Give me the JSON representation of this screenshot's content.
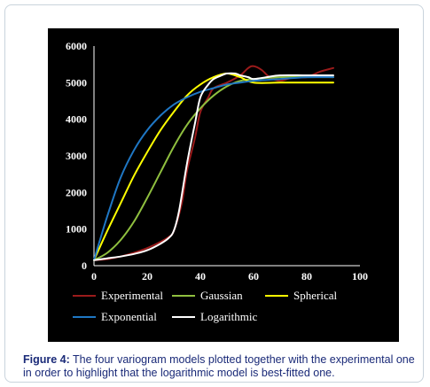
{
  "caption": {
    "label": "Figure 4:",
    "text": "The four variogram models plotted together with the experimental one in order to highlight that the logarithmic model is best-fitted one."
  },
  "chart_data": {
    "type": "line",
    "title": "",
    "xlabel": "",
    "ylabel": "",
    "xlim": [
      0,
      100
    ],
    "ylim": [
      0,
      6000
    ],
    "x_ticks": [
      "0",
      "20",
      "40",
      "60",
      "80",
      "100"
    ],
    "y_ticks": [
      "0",
      "1000",
      "2000",
      "3000",
      "4000",
      "5000",
      "6000"
    ],
    "grid": false,
    "legend_position": "bottom",
    "series": [
      {
        "name": "Experimental",
        "color": "#9b1b1b",
        "x": [
          0,
          5,
          10,
          15,
          20,
          25,
          28,
          30,
          33,
          35,
          38,
          40,
          43,
          45,
          50,
          55,
          58,
          60,
          63,
          66,
          70,
          75,
          80,
          85,
          90
        ],
        "y": [
          150,
          180,
          250,
          350,
          480,
          650,
          780,
          950,
          1700,
          2600,
          3500,
          4200,
          4600,
          4850,
          5000,
          5200,
          5400,
          5450,
          5350,
          5150,
          5050,
          5150,
          5150,
          5300,
          5400
        ]
      },
      {
        "name": "Gaussian",
        "color": "#8fbf3f",
        "x": [
          0,
          5,
          10,
          15,
          20,
          25,
          30,
          35,
          40,
          45,
          50,
          55,
          60,
          70,
          80,
          90
        ],
        "y": [
          150,
          350,
          700,
          1200,
          1850,
          2550,
          3250,
          3850,
          4300,
          4650,
          4900,
          5050,
          5100,
          5150,
          5150,
          5150
        ]
      },
      {
        "name": "Spherical",
        "color": "#ffff00",
        "x": [
          0,
          5,
          10,
          15,
          20,
          25,
          30,
          35,
          40,
          45,
          50,
          55,
          60,
          70,
          80,
          90
        ],
        "y": [
          150,
          950,
          1700,
          2450,
          3100,
          3700,
          4200,
          4650,
          4950,
          5150,
          5250,
          5150,
          5000,
          5000,
          5000,
          5000
        ]
      },
      {
        "name": "Exponential",
        "color": "#1f77c4",
        "x": [
          0,
          5,
          10,
          15,
          20,
          25,
          30,
          35,
          40,
          45,
          50,
          55,
          60,
          70,
          80,
          90
        ],
        "y": [
          150,
          1350,
          2400,
          3150,
          3700,
          4100,
          4400,
          4600,
          4750,
          4850,
          4950,
          5000,
          5050,
          5100,
          5150,
          5150
        ]
      },
      {
        "name": "Logarithmic",
        "color": "#ffffff",
        "x": [
          0,
          5,
          10,
          15,
          20,
          25,
          28,
          30,
          32,
          35,
          38,
          40,
          43,
          45,
          48,
          50,
          53,
          55,
          58,
          60,
          65,
          70,
          80,
          90
        ],
        "y": [
          150,
          200,
          250,
          320,
          420,
          600,
          750,
          950,
          1500,
          2800,
          3900,
          4600,
          4950,
          5100,
          5200,
          5250,
          5250,
          5200,
          5150,
          5100,
          5150,
          5200,
          5200,
          5200
        ]
      }
    ]
  }
}
